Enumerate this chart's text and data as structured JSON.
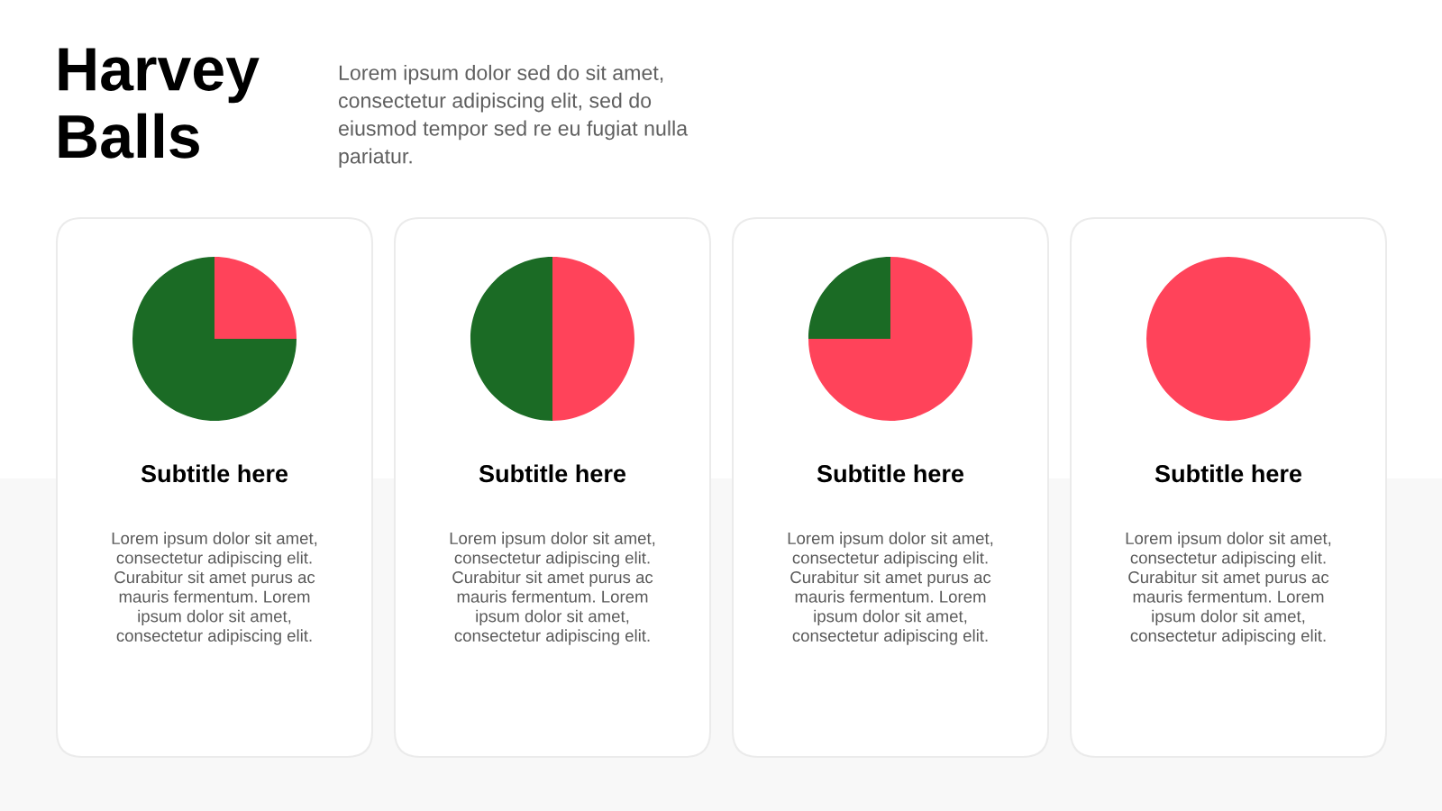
{
  "chart_data": [
    {
      "type": "other",
      "title": "Harvey\nBalls",
      "subtitle": "Lorem ipsum dolor sed do sit amet,\nconsectetur adipiscing elit, sed do\neiusmod tempor sed re eu fugiat nulla\npariatur."
    },
    {
      "type": "pie",
      "title": "Subtitle here",
      "categories": [
        null,
        null
      ],
      "values": [
        25,
        75
      ],
      "colors": [
        "#ff435a",
        "#1b6b25"
      ],
      "annotations": [
        "Lorem ipsum dolor sit amet,\nconsectetur adipiscing elit.\nCurabitur sit amet purus ac\nmauris fermentum. Lorem\nipsum dolor sit amet,\nconsectetur adipiscing elit."
      ]
    },
    {
      "type": "pie",
      "title": "Subtitle here",
      "categories": [
        null,
        null
      ],
      "values": [
        50,
        50
      ],
      "colors": [
        "#ff435a",
        "#1b6b25"
      ],
      "annotations": [
        "Lorem ipsum dolor sit amet,\nconsectetur adipiscing elit.\nCurabitur sit amet purus ac\nmauris fermentum. Lorem\nipsum dolor sit amet,\nconsectetur adipiscing elit."
      ]
    },
    {
      "type": "pie",
      "title": "Subtitle here",
      "categories": [
        null,
        null
      ],
      "values": [
        75,
        25
      ],
      "colors": [
        "#ff435a",
        "#1b6b25"
      ],
      "annotations": [
        "Lorem ipsum dolor sit amet,\nconsectetur adipiscing elit.\nCurabitur sit amet purus ac\nmauris fermentum. Lorem\nipsum dolor sit amet,\nconsectetur adipiscing elit."
      ]
    },
    {
      "type": "pie",
      "title": "Subtitle here",
      "categories": [
        null
      ],
      "values": [
        100
      ],
      "colors": [
        "#ff435a"
      ],
      "annotations": [
        "Lorem ipsum dolor sit amet,\nconsectetur adipiscing elit.\nCurabitur sit amet purus ac\nmauris fermentum. Lorem\nipsum dolor sit amet,\nconsectetur adipiscing elit."
      ]
    }
  ]
}
